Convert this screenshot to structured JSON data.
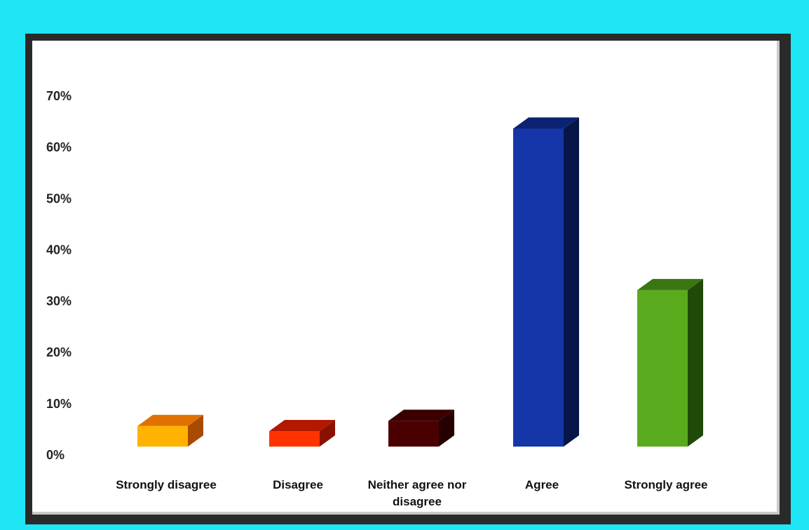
{
  "chart_data": {
    "type": "bar",
    "title": "",
    "xlabel": "",
    "ylabel": "",
    "categories": [
      [
        "Strongly disagree"
      ],
      [
        "Disagree"
      ],
      [
        "Neither agree nor",
        "disagree"
      ],
      [
        "Agree"
      ],
      [
        "Strongly agree"
      ]
    ],
    "values": [
      4,
      3,
      5,
      62,
      30.5
    ],
    "ylim": [
      0,
      70
    ],
    "yticks": [
      "0%",
      "10%",
      "20%",
      "30%",
      "40%",
      "50%",
      "60%",
      "70%"
    ],
    "grid": false,
    "colors": {
      "front": [
        "#ffb300",
        "#ff3300",
        "#4a0000",
        "#1436a8",
        "#5aaa1e"
      ],
      "top": [
        "#e07000",
        "#b31800",
        "#3a0000",
        "#0b2370",
        "#3a7612"
      ],
      "side": [
        "#a84a00",
        "#8a1000",
        "#260000",
        "#061648",
        "#1f4a08"
      ]
    }
  }
}
